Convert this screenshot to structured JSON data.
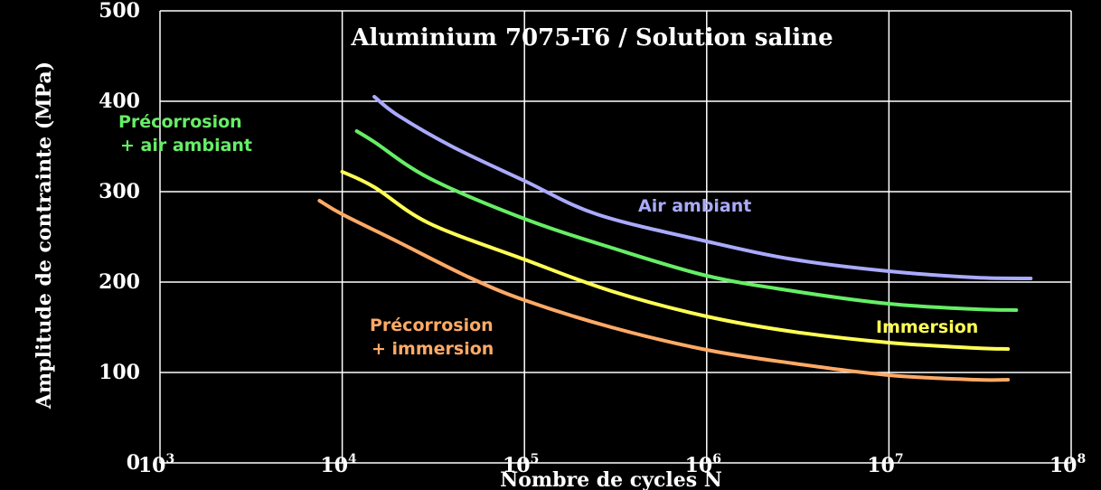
{
  "chart_data": {
    "type": "line",
    "title": "Aluminium 7075-T6 / Solution saline",
    "xlabel": "Nombre de cycles N",
    "ylabel": "Amplitude de contrainte (MPa)",
    "x_scale": "log",
    "xlim": [
      1000,
      100000000
    ],
    "ylim": [
      0,
      500
    ],
    "grid": true,
    "x_ticks": [
      {
        "base": "10",
        "exp": "3",
        "value": 1000
      },
      {
        "base": "10",
        "exp": "4",
        "value": 10000
      },
      {
        "base": "10",
        "exp": "5",
        "value": 100000
      },
      {
        "base": "10",
        "exp": "6",
        "value": 1000000
      },
      {
        "base": "10",
        "exp": "7",
        "value": 10000000
      },
      {
        "base": "10",
        "exp": "8",
        "value": 100000000
      }
    ],
    "y_ticks": [
      "0",
      "100",
      "200",
      "300",
      "400",
      "500"
    ],
    "series": [
      {
        "name": "Air ambiant",
        "label_lines": [
          "Air ambiant"
        ],
        "color": "#aaaaff",
        "x": [
          15000,
          20000,
          40000,
          100000,
          250000,
          1000000,
          3000000,
          10000000,
          30000000,
          60000000
        ],
        "y": [
          405,
          385,
          350,
          312,
          275,
          245,
          225,
          212,
          205,
          204
        ]
      },
      {
        "name": "Précorrosion + air ambiant",
        "label_lines": [
          "Précorrosion",
          "+ air ambiant"
        ],
        "color": "#66ee66",
        "x": [
          12000,
          15000,
          30000,
          100000,
          300000,
          1000000,
          3000000,
          10000000,
          30000000,
          50000000
        ],
        "y": [
          367,
          355,
          315,
          270,
          238,
          207,
          190,
          176,
          170,
          169
        ]
      },
      {
        "name": "Immersion",
        "label_lines": [
          "Immersion"
        ],
        "color": "#ffff55",
        "x": [
          10000,
          15000,
          30000,
          100000,
          300000,
          1000000,
          3000000,
          10000000,
          30000000,
          45000000
        ],
        "y": [
          322,
          305,
          265,
          225,
          190,
          162,
          145,
          133,
          127,
          126
        ]
      },
      {
        "name": "Précorrosion + immersion",
        "label_lines": [
          "Précorrosion",
          "+ immersion"
        ],
        "color": "#ffaa66",
        "x": [
          7500,
          10000,
          20000,
          50000,
          100000,
          300000,
          1000000,
          3000000,
          10000000,
          30000000,
          45000000
        ],
        "y": [
          290,
          275,
          245,
          205,
          180,
          150,
          125,
          110,
          97,
          92,
          92
        ]
      }
    ]
  }
}
